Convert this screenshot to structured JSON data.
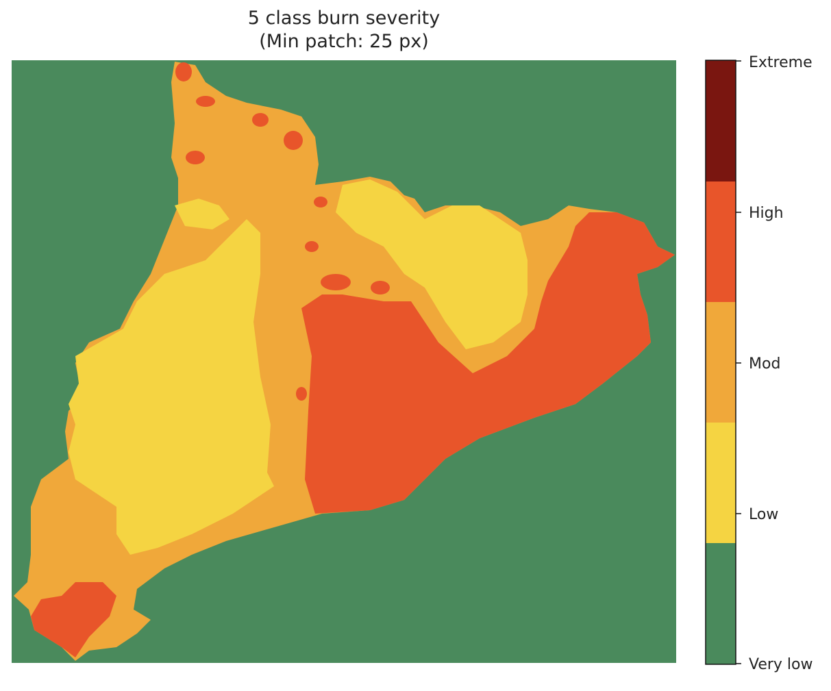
{
  "chart_data": {
    "type": "heatmap",
    "title": "5 class burn severity",
    "subtitle": "(Min patch: 25 px)",
    "colorbar": {
      "classes": [
        {
          "label": "Very low",
          "color": "#4a8a5c"
        },
        {
          "label": "Low",
          "color": "#f5d442"
        },
        {
          "label": "Mod",
          "color": "#f0a83a"
        },
        {
          "label": "High",
          "color": "#e8552a"
        },
        {
          "label": "Extreme",
          "color": "#7a1610"
        }
      ],
      "tick_labels": [
        "Very low",
        "Low",
        "Mod",
        "High",
        "Extreme"
      ]
    }
  }
}
